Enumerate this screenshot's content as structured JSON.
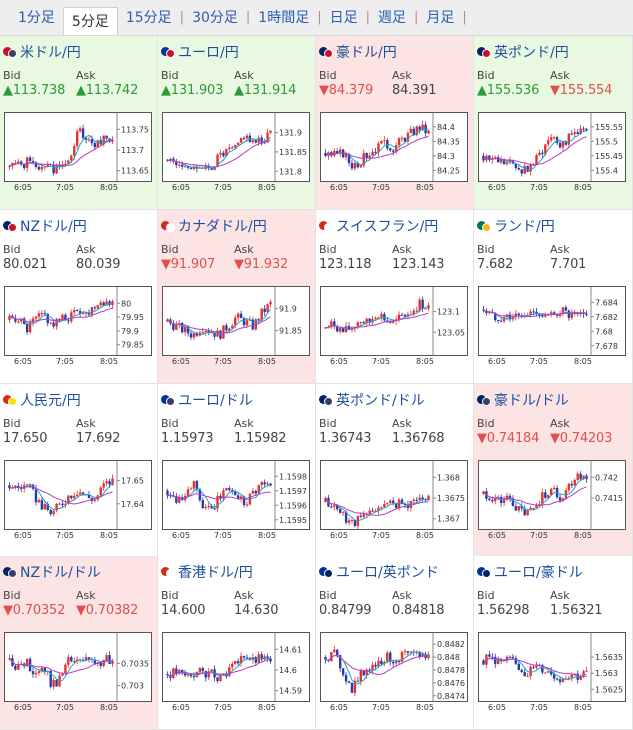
{
  "tabs": [
    {
      "label": "1分足",
      "active": false
    },
    {
      "label": "5分足",
      "active": true
    },
    {
      "label": "15分足",
      "active": false
    },
    {
      "label": "30分足",
      "active": false
    },
    {
      "label": "1時間足",
      "active": false
    },
    {
      "label": "日足",
      "active": false
    },
    {
      "label": "週足",
      "active": false
    },
    {
      "label": "月足",
      "active": false
    }
  ],
  "labels": {
    "bid": "Bid",
    "ask": "Ask"
  },
  "x_ticks": [
    "6:05",
    "7:05",
    "8:05"
  ],
  "colors": {
    "up_text": "#2f9a3a",
    "down_text": "#e0504e",
    "up_bg": "#e9f8e1",
    "down_bg": "#fde4e4",
    "candle_up": "#e8302c",
    "candle_down": "#2a3aa8",
    "ma_fast": "#1aa7c9",
    "ma_slow": "#b43cc4"
  },
  "pairs": [
    {
      "name": "米ドル/円",
      "flags": [
        "#c8102e",
        "#3c3b6e"
      ],
      "state": "up",
      "bid": "▲113.738",
      "ask": "▲113.742",
      "bid_dir": "up",
      "ask_dir": "up",
      "y_ticks": [
        "113.75",
        "113.7",
        "113.65"
      ],
      "ylim": [
        113.63,
        113.77
      ],
      "trend": [
        113.66,
        113.665,
        113.67,
        113.66,
        113.665,
        113.655,
        113.66,
        113.67,
        113.75,
        113.72,
        113.7,
        113.74,
        113.72
      ]
    },
    {
      "name": "ユーロ/円",
      "flags": [
        "#003399",
        "#c8102e"
      ],
      "state": "up",
      "bid": "▲131.903",
      "ask": "▲131.914",
      "bid_dir": "up",
      "ask_dir": "up",
      "y_ticks": [
        "131.9",
        "131.85",
        "131.8"
      ],
      "ylim": [
        131.78,
        131.93
      ],
      "trend": [
        131.83,
        131.82,
        131.81,
        131.82,
        131.8,
        131.81,
        131.84,
        131.85,
        131.86,
        131.9,
        131.87,
        131.88,
        131.9
      ]
    },
    {
      "name": "豪ドル/円",
      "flags": [
        "#012169",
        "#c8102e"
      ],
      "state": "down",
      "bid": "▼84.379",
      "ask": "84.391",
      "bid_dir": "down",
      "ask_dir": "flat",
      "y_ticks": [
        "84.4",
        "84.35",
        "84.3",
        "84.25"
      ],
      "ylim": [
        84.22,
        84.42
      ],
      "trend": [
        84.31,
        84.3,
        84.31,
        84.27,
        84.28,
        84.31,
        84.33,
        84.34,
        84.33,
        84.36,
        84.38,
        84.4,
        84.38
      ]
    },
    {
      "name": "英ポンド/円",
      "flags": [
        "#012169",
        "#c8102e"
      ],
      "state": "up",
      "bid": "▲155.536",
      "ask": "▼155.554",
      "bid_dir": "up",
      "ask_dir": "down",
      "y_ticks": [
        "155.55",
        "155.5",
        "155.45",
        "155.4"
      ],
      "ylim": [
        155.37,
        155.57
      ],
      "trend": [
        155.45,
        155.44,
        155.43,
        155.42,
        155.41,
        155.4,
        155.43,
        155.48,
        155.53,
        155.49,
        155.51,
        155.54,
        155.53
      ]
    },
    {
      "name": "NZドル/円",
      "flags": [
        "#012169",
        "#c8102e"
      ],
      "state": "neutral",
      "bid": "80.021",
      "ask": "80.039",
      "bid_dir": "flat",
      "ask_dir": "flat",
      "y_ticks": [
        "80",
        "79.95",
        "79.9",
        "79.85"
      ],
      "ylim": [
        79.82,
        80.03
      ],
      "trend": [
        79.94,
        79.95,
        79.9,
        79.94,
        79.96,
        79.92,
        79.94,
        79.95,
        79.98,
        79.96,
        80.0,
        80.01,
        80.0
      ]
    },
    {
      "name": "カナダドル/円",
      "flags": [
        "#d52b1e",
        "#ffffff"
      ],
      "state": "down",
      "bid": "▼91.907",
      "ask": "▼91.932",
      "bid_dir": "down",
      "ask_dir": "down",
      "y_ticks": [
        "91.9",
        "91.85"
      ],
      "ylim": [
        91.8,
        91.93
      ],
      "trend": [
        91.87,
        91.86,
        91.85,
        91.84,
        91.86,
        91.85,
        91.84,
        91.86,
        91.88,
        91.87,
        91.86,
        91.89,
        91.91
      ]
    },
    {
      "name": "スイスフラン/円",
      "flags": [
        "#d52b1e",
        "#ffffff"
      ],
      "state": "neutral",
      "bid": "123.118",
      "ask": "123.143",
      "bid_dir": "flat",
      "ask_dir": "flat",
      "y_ticks": [
        "123.1",
        "123.05"
      ],
      "ylim": [
        123.0,
        123.14
      ],
      "trend": [
        123.06,
        123.07,
        123.05,
        123.06,
        123.08,
        123.07,
        123.1,
        123.08,
        123.07,
        123.09,
        123.1,
        123.12,
        123.11
      ]
    },
    {
      "name": "ランド/円",
      "flags": [
        "#007a4d",
        "#ffb612"
      ],
      "state": "neutral",
      "bid": "7.682",
      "ask": "7.701",
      "bid_dir": "flat",
      "ask_dir": "flat",
      "y_ticks": [
        "7.684",
        "7.682",
        "7.68",
        "7.678"
      ],
      "ylim": [
        7.677,
        7.685
      ],
      "trend": [
        7.683,
        7.682,
        7.682,
        7.682,
        7.682,
        7.682,
        7.683,
        7.682,
        7.682,
        7.683,
        7.682,
        7.682,
        7.682
      ]
    },
    {
      "name": "人民元/円",
      "flags": [
        "#de2910",
        "#ffde00"
      ],
      "state": "neutral",
      "bid": "17.650",
      "ask": "17.692",
      "bid_dir": "flat",
      "ask_dir": "flat",
      "y_ticks": [
        "17.65",
        "17.64"
      ],
      "ylim": [
        17.63,
        17.655
      ],
      "trend": [
        17.648,
        17.647,
        17.648,
        17.643,
        17.638,
        17.636,
        17.64,
        17.644,
        17.646,
        17.643,
        17.642,
        17.648,
        17.65
      ]
    },
    {
      "name": "ユーロ/ドル",
      "flags": [
        "#003399",
        "#3c3b6e"
      ],
      "state": "neutral",
      "bid": "1.15973",
      "ask": "1.15982",
      "bid_dir": "flat",
      "ask_dir": "flat",
      "y_ticks": [
        "1.1598",
        "1.1597",
        "1.1596",
        "1.1595"
      ],
      "ylim": [
        1.15945,
        1.15985
      ],
      "trend": [
        1.1597,
        1.15965,
        1.15968,
        1.15975,
        1.1596,
        1.15955,
        1.15965,
        1.15972,
        1.15968,
        1.15962,
        1.1597,
        1.15975,
        1.15972
      ]
    },
    {
      "name": "英ポンド/ドル",
      "flags": [
        "#012169",
        "#3c3b6e"
      ],
      "state": "neutral",
      "bid": "1.36743",
      "ask": "1.36768",
      "bid_dir": "flat",
      "ask_dir": "flat",
      "y_ticks": [
        "1.368",
        "1.3675",
        "1.367"
      ],
      "ylim": [
        1.3668,
        1.3682
      ],
      "trend": [
        1.3674,
        1.3673,
        1.3671,
        1.3669,
        1.367,
        1.3671,
        1.3673,
        1.3673,
        1.3674,
        1.3673,
        1.3674,
        1.3675,
        1.3675
      ]
    },
    {
      "name": "豪ドル/ドル",
      "flags": [
        "#012169",
        "#3c3b6e"
      ],
      "state": "down",
      "bid": "▼0.74184",
      "ask": "▼0.74203",
      "bid_dir": "down",
      "ask_dir": "down",
      "y_ticks": [
        "0.742",
        "0.7415"
      ],
      "ylim": [
        0.7408,
        0.7422
      ],
      "trend": [
        0.7416,
        0.7415,
        0.7414,
        0.7415,
        0.7412,
        0.7411,
        0.7413,
        0.7416,
        0.7417,
        0.7415,
        0.7418,
        0.7421,
        0.7419
      ]
    },
    {
      "name": "NZドル/ドル",
      "flags": [
        "#012169",
        "#3c3b6e"
      ],
      "state": "down",
      "bid": "▼0.70352",
      "ask": "▼0.70382",
      "bid_dir": "down",
      "ask_dir": "down",
      "y_ticks": [
        "0.7035",
        "0.703"
      ],
      "ylim": [
        0.7027,
        0.704
      ],
      "trend": [
        0.7036,
        0.7034,
        0.7035,
        0.7033,
        0.7034,
        0.703,
        0.7032,
        0.7036,
        0.7035,
        0.7036,
        0.7034,
        0.7036,
        0.7035
      ]
    },
    {
      "name": "香港ドル/円",
      "flags": [
        "#de2910",
        "#ffffff"
      ],
      "state": "neutral",
      "bid": "14.600",
      "ask": "14.630",
      "bid_dir": "flat",
      "ask_dir": "flat",
      "y_ticks": [
        "14.61",
        "14.6",
        "14.59"
      ],
      "ylim": [
        14.586,
        14.614
      ],
      "trend": [
        14.598,
        14.599,
        14.597,
        14.598,
        14.599,
        14.598,
        14.597,
        14.6,
        14.602,
        14.608,
        14.604,
        14.606,
        14.603
      ]
    },
    {
      "name": "ユーロ/英ポンド",
      "flags": [
        "#003399",
        "#012169"
      ],
      "state": "neutral",
      "bid": "0.84799",
      "ask": "0.84818",
      "bid_dir": "flat",
      "ask_dir": "flat",
      "y_ticks": [
        "0.8482",
        "0.848",
        "0.8478",
        "0.8476",
        "0.8474"
      ],
      "ylim": [
        0.84735,
        0.84825
      ],
      "trend": [
        0.848,
        0.84805,
        0.8478,
        0.8475,
        0.8477,
        0.84785,
        0.8479,
        0.848,
        0.84795,
        0.84805,
        0.848,
        0.84805,
        0.848
      ]
    },
    {
      "name": "ユーロ/豪ドル",
      "flags": [
        "#003399",
        "#012169"
      ],
      "state": "neutral",
      "bid": "1.56298",
      "ask": "1.56321",
      "bid_dir": "flat",
      "ask_dir": "flat",
      "y_ticks": [
        "1.5635",
        "1.563",
        "1.5625"
      ],
      "ylim": [
        1.5622,
        1.564
      ],
      "trend": [
        1.5634,
        1.5635,
        1.5633,
        1.5634,
        1.5632,
        1.563,
        1.5632,
        1.5631,
        1.563,
        1.5628,
        1.563,
        1.5629,
        1.563
      ]
    }
  ]
}
